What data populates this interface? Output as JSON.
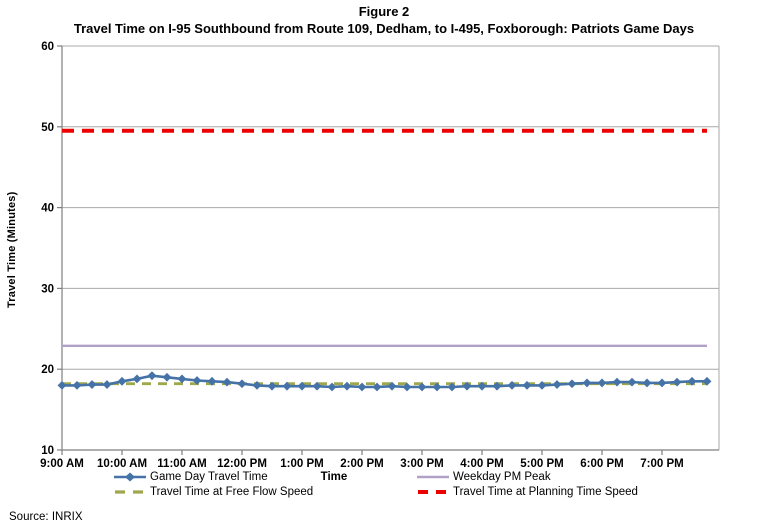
{
  "figure": {
    "figure_label": "Figure 2",
    "source": "Source: INRIX"
  },
  "chart_data": {
    "type": "line",
    "title": "Travel Time on I-95 Southbound from Route 109, Dedham, to I-495, Foxborough: Patriots Game Days",
    "xlabel": "Time",
    "ylabel": "Travel Time (Minutes)",
    "ylim": [
      10,
      60
    ],
    "y_ticks": [
      10,
      20,
      30,
      40,
      50,
      60
    ],
    "x_tick_labels": [
      "9:00 AM",
      "10:00 AM",
      "11:00 AM",
      "12:00 PM",
      "1:00 PM",
      "2:00 PM",
      "3:00 PM",
      "4:00 PM",
      "5:00 PM",
      "6:00 PM",
      "7:00 PM"
    ],
    "x_start": "9:00 AM",
    "x_end": "7:45 PM",
    "x_interval_minutes": 15,
    "point_count": 44,
    "grid": "horizontal",
    "legend_position": "bottom",
    "colors": {
      "grid": "#a8a8a8",
      "axis": "#7f7f7f"
    },
    "series": [
      {
        "key": "game_day",
        "name": "Game Day Travel Time",
        "color": "#4573A7",
        "style": "solid",
        "marker": "diamond",
        "values": [
          18.0,
          18.0,
          18.1,
          18.1,
          18.5,
          18.8,
          19.2,
          19.0,
          18.8,
          18.6,
          18.5,
          18.4,
          18.2,
          18.0,
          17.9,
          17.9,
          17.9,
          17.9,
          17.8,
          17.9,
          17.8,
          17.8,
          17.9,
          17.8,
          17.8,
          17.8,
          17.8,
          17.9,
          17.9,
          17.9,
          18.0,
          18.0,
          18.0,
          18.1,
          18.2,
          18.3,
          18.3,
          18.4,
          18.4,
          18.3,
          18.3,
          18.4,
          18.5,
          18.5
        ]
      },
      {
        "key": "weekday_pm_peak",
        "name": "Weekday PM Peak",
        "color": "#B2A1C7",
        "style": "solid",
        "marker": "none",
        "constant": 22.9
      },
      {
        "key": "free_flow",
        "name": "Travel Time at Free Flow Speed",
        "color": "#A0A84E",
        "style": "dashed",
        "marker": "none",
        "constant": 18.2
      },
      {
        "key": "planning",
        "name": "Travel Time at Planning Time Speed",
        "color": "#ED0000",
        "style": "dashed",
        "marker": "none",
        "constant": 49.5
      }
    ]
  }
}
